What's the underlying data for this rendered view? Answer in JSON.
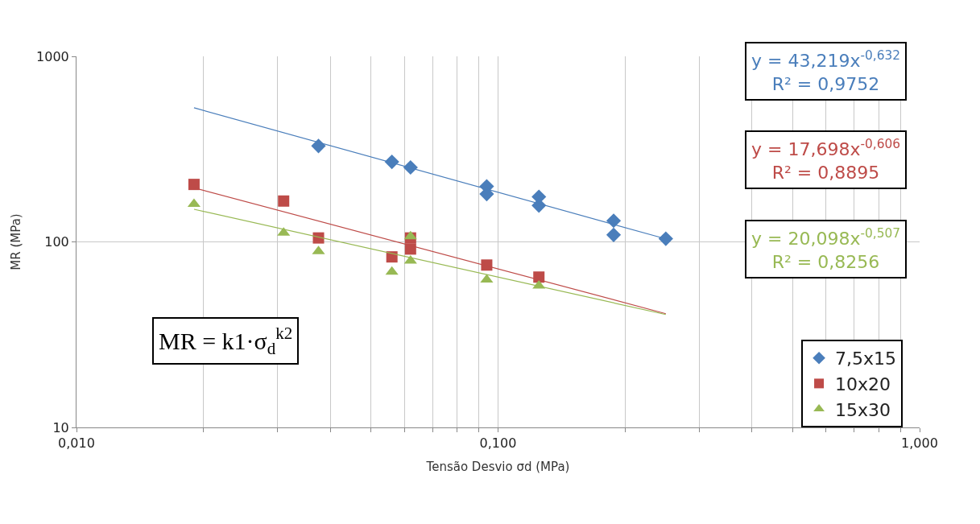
{
  "chart_data": {
    "type": "scatter",
    "xlabel": "Tensão Desvio σd (MPa)",
    "ylabel": "MR (MPa)",
    "log": "xy",
    "xlim": [
      0.01,
      1
    ],
    "xticks": [
      {
        "value": 0.01,
        "label": "0,010"
      },
      {
        "value": 0.02,
        "label": null
      },
      {
        "value": 0.03,
        "label": null
      },
      {
        "value": 0.04,
        "label": null
      },
      {
        "value": 0.05,
        "label": null
      },
      {
        "value": 0.06,
        "label": null
      },
      {
        "value": 0.07,
        "label": null
      },
      {
        "value": 0.08,
        "label": null
      },
      {
        "value": 0.09,
        "label": null
      },
      {
        "value": 0.1,
        "label": "0,100"
      },
      {
        "value": 0.2,
        "label": null
      },
      {
        "value": 0.3,
        "label": null
      },
      {
        "value": 0.4,
        "label": null
      },
      {
        "value": 0.5,
        "label": null
      },
      {
        "value": 0.6,
        "label": null
      },
      {
        "value": 0.7,
        "label": null
      },
      {
        "value": 0.8,
        "label": null
      },
      {
        "value": 0.9,
        "label": null
      },
      {
        "value": 1,
        "label": "1,000"
      }
    ],
    "ylim": [
      10,
      1000
    ],
    "yticks": [
      10,
      100,
      1000
    ],
    "grid": true,
    "legend": "bottom right",
    "series": [
      {
        "name": "7,5x15",
        "color": "#4a7ebb",
        "marker": "diamond",
        "x": [
          0.0375,
          0.056,
          0.062,
          0.094,
          0.094,
          0.125,
          0.125,
          0.188,
          0.188,
          0.25
        ],
        "values": [
          329,
          270,
          252,
          199,
          181,
          175,
          157,
          130,
          109,
          104
        ]
      },
      {
        "name": "10x20",
        "color": "#be4b48",
        "marker": "square",
        "x": [
          0.019,
          0.031,
          0.0375,
          0.056,
          0.062,
          0.062,
          0.094,
          0.125
        ],
        "values": [
          204,
          166,
          105,
          83,
          105,
          91.5,
          75,
          64.6
        ]
      },
      {
        "name": "15x30",
        "color": "#98b954",
        "marker": "triangle",
        "x": [
          0.019,
          0.031,
          0.0375,
          0.056,
          0.062,
          0.062,
          0.094,
          0.125
        ],
        "values": [
          160,
          112,
          89,
          69,
          107,
          79,
          62.5,
          58
        ]
      },
      {
        "type": "line",
        "color": "#4a7ebb",
        "marker": "none",
        "x": [
          0.019,
          0.25
        ],
        "values": [
          528,
          103.8
        ]
      },
      {
        "type": "line",
        "color": "#be4b48",
        "marker": "none",
        "x": [
          0.019,
          0.25
        ],
        "values": [
          195.6,
          41.0
        ]
      },
      {
        "type": "line",
        "color": "#98b954",
        "marker": "none",
        "x": [
          0.019,
          0.25
        ],
        "values": [
          149.9,
          40.6
        ]
      }
    ],
    "annotations": [
      "y = 43,219x$^{-0,632}$\nR² = 0,9752",
      "y = 17,698x$^{-0,606}$\nR² = 0,8895",
      "y = 20,098x$^{-0,507}$\nR² = 0,8256",
      "MR = k1·σ$_{d}$$^{k2}$"
    ]
  }
}
